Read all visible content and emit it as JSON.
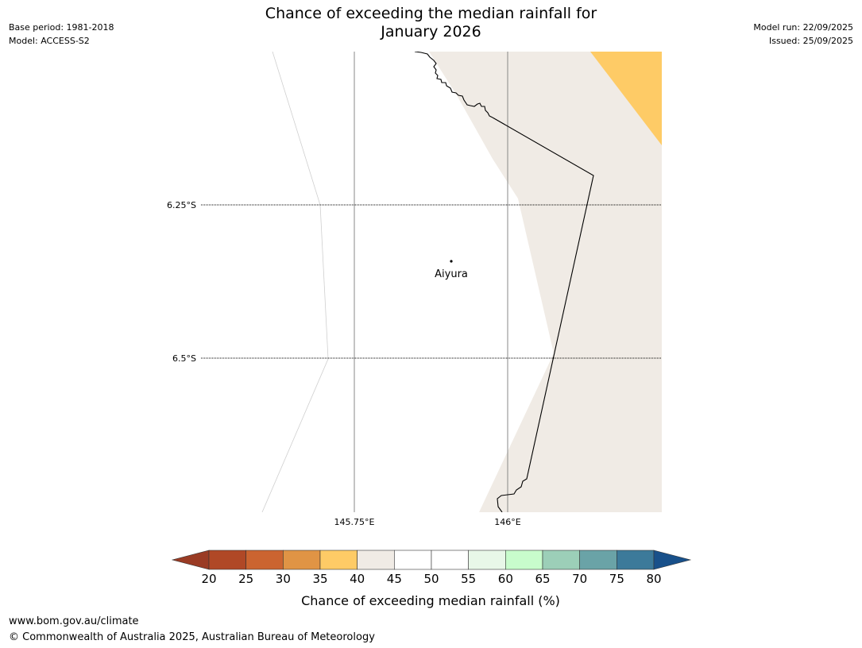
{
  "header": {
    "title_line1": "Chance of exceeding the median rainfall for",
    "title_line2": "January 2026",
    "base_period": "Base period: 1981-2018",
    "model": "Model: ACCESS-S2",
    "model_run": "Model run: 22/09/2025",
    "issued": "Issued: 25/09/2025"
  },
  "map": {
    "place": "Aiyura",
    "lat_labels": [
      "6.25°S",
      "6.5°S"
    ],
    "lon_labels": [
      "145.75°E",
      "146°E"
    ],
    "colors": {
      "land_40_45": "#f0ebe5",
      "band_35_40": "#fecb66",
      "ocean": "#ffffff"
    }
  },
  "legend": {
    "title": "Chance of exceeding median rainfall (%)",
    "ticks": [
      "20",
      "25",
      "30",
      "35",
      "40",
      "45",
      "50",
      "55",
      "60",
      "65",
      "70",
      "75",
      "80"
    ],
    "colors": [
      "#9a3b24",
      "#b04826",
      "#cb6430",
      "#e09445",
      "#fecb66",
      "#f0ebe5",
      "#ffffff",
      "#ffffff",
      "#e8f7e8",
      "#c8fccc",
      "#9ccfb8",
      "#6aa3a7",
      "#3c7a9a",
      "#18508a"
    ]
  },
  "footer": {
    "url": "www.bom.gov.au/climate",
    "copyright": "© Commonwealth of Australia 2025, Australian Bureau of Meteorology"
  }
}
